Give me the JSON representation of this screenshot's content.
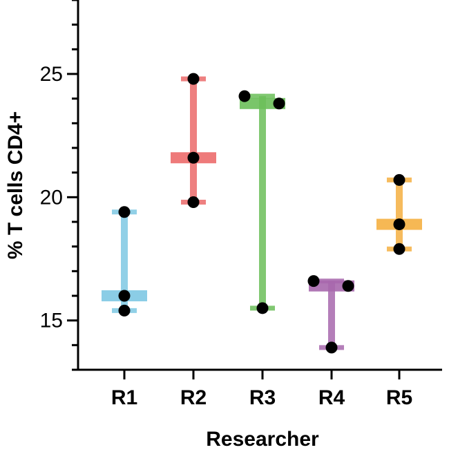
{
  "chart_data": {
    "type": "scatter",
    "xlabel": "Researcher",
    "ylabel": "% T cells CD4+",
    "ylim": [
      13,
      28
    ],
    "y_major_ticks": [
      15,
      20,
      25
    ],
    "y_minor_step": 1,
    "categories": [
      "R1",
      "R2",
      "R3",
      "R4",
      "R5"
    ],
    "series": [
      {
        "category": "R1",
        "color": "#7ec8e3",
        "points": [
          19.4,
          16.0,
          15.4
        ],
        "min": 15.4,
        "median": 16.0,
        "max": 19.4
      },
      {
        "category": "R2",
        "color": "#ec6b6b",
        "points": [
          24.8,
          21.6,
          19.8
        ],
        "min": 19.8,
        "median": 21.6,
        "max": 24.8
      },
      {
        "category": "R3",
        "color": "#6cbf5a",
        "points": [
          24.1,
          23.8,
          15.5
        ],
        "min": 15.5,
        "median": 23.8,
        "max": 24.1
      },
      {
        "category": "R4",
        "color": "#a768ad",
        "points": [
          16.6,
          16.4,
          13.9
        ],
        "min": 13.9,
        "median": 16.4,
        "max": 16.6
      },
      {
        "category": "R5",
        "color": "#f5b041",
        "points": [
          20.7,
          18.9,
          17.9
        ],
        "min": 17.9,
        "median": 18.9,
        "max": 20.7
      }
    ]
  }
}
